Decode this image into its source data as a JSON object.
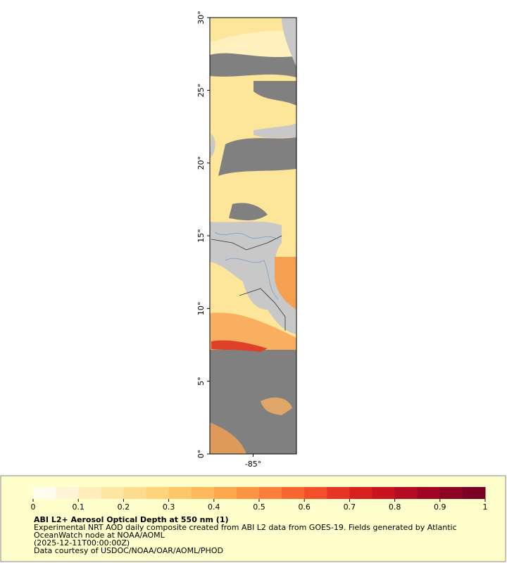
{
  "map": {
    "ylim": [
      0,
      30
    ],
    "xlim": [
      -88,
      -82
    ],
    "yticks": [
      {
        "value": 0,
        "label": "0°"
      },
      {
        "value": 5,
        "label": "5°"
      },
      {
        "value": 10,
        "label": "10°"
      },
      {
        "value": 15,
        "label": "15°"
      },
      {
        "value": 20,
        "label": "20°"
      },
      {
        "value": 25,
        "label": "25°"
      },
      {
        "value": 30,
        "label": "30°"
      }
    ],
    "xticks": [
      {
        "value": -85,
        "label": "-85°"
      }
    ]
  },
  "colorbar": {
    "range": [
      0,
      1
    ],
    "ticks": [
      0,
      0.1,
      0.2,
      0.3,
      0.4,
      0.5,
      0.6,
      0.7,
      0.8,
      0.9,
      1
    ],
    "colors": [
      "#fffdf0",
      "#fff5d6",
      "#ffedbc",
      "#ffe5a4",
      "#fedc8e",
      "#fed37c",
      "#fdc76a",
      "#fdb95c",
      "#fda84f",
      "#fc9444",
      "#fb7f3a",
      "#f86732",
      "#f24f2b",
      "#e63524",
      "#d8211f",
      "#c8141e",
      "#b40c22",
      "#a00624",
      "#8c0324",
      "#7a0026"
    ]
  },
  "legend": {
    "title": "ABI L2+ Aerosol Optical Depth at 550 nm (1)",
    "lines": [
      "Experimental NRT AOD daily composite created from ABI L2 data from GOES-19. Fields generated by Atlantic",
      "OceanWatch node at NOAA/AOML",
      "(2025-12-11T00:00:00Z)",
      "Data courtesy of USDOC/NOAA/OAR/AOML/PHOD"
    ]
  }
}
